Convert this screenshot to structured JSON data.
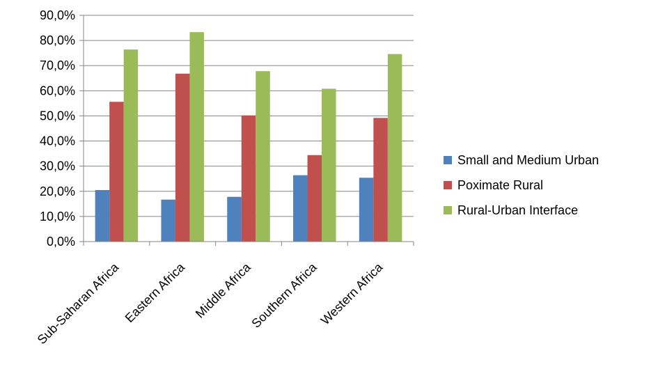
{
  "chart_data": {
    "type": "bar",
    "categories": [
      "Sub-Saharan Africa",
      "Eastern Africa",
      "Middle  Africa",
      "Southern Africa",
      "Western Africa"
    ],
    "series": [
      {
        "name": "Small and Medium Urban",
        "color": "#4F81BD",
        "values": [
          20.5,
          16.7,
          17.8,
          26.4,
          25.4
        ]
      },
      {
        "name": "Poximate Rural",
        "color": "#C0504D",
        "values": [
          55.6,
          66.8,
          50.2,
          34.4,
          49.2
        ]
      },
      {
        "name": "Rural-Urban Interface",
        "color": "#9BBB59",
        "values": [
          76.4,
          83.3,
          67.8,
          60.8,
          74.6
        ]
      }
    ],
    "ylim": [
      0,
      90
    ],
    "yticks": [
      "0,0%",
      "10,0%",
      "20,0%",
      "30,0%",
      "40,0%",
      "50,0%",
      "60,0%",
      "70,0%",
      "80,0%",
      "90,0%"
    ],
    "grid": true,
    "legend_position": "right",
    "title": "",
    "xlabel": "",
    "ylabel": ""
  }
}
